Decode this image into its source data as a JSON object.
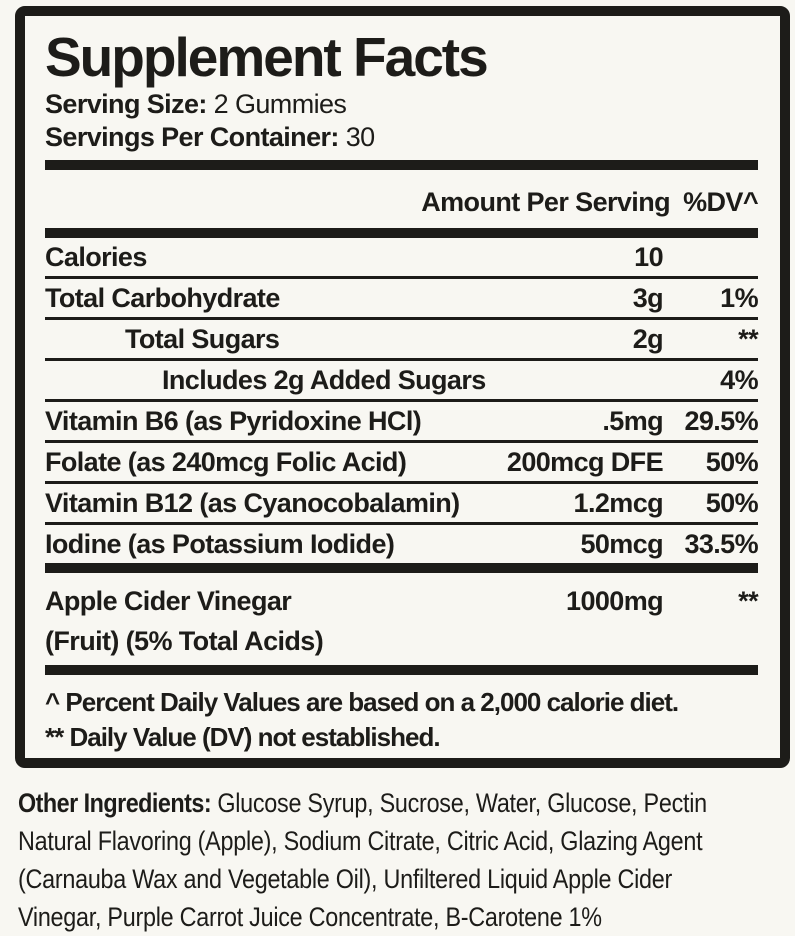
{
  "colors": {
    "ink": "#1d1c19",
    "background": "#f8f7f2"
  },
  "label": {
    "title": "Supplement Facts",
    "serving_size_label": "Serving Size:",
    "serving_size_value": "2 Gummies",
    "servings_per_container_label": "Servings Per Container:",
    "servings_per_container_value": "30",
    "header": {
      "amount": "Amount Per Serving",
      "dv": "%DV^"
    },
    "rows": [
      {
        "name": "Calories",
        "amount": "10",
        "dv": "",
        "indent": 0
      },
      {
        "name": "Total Carbohydrate",
        "amount": "3g",
        "dv": "1%",
        "indent": 0
      },
      {
        "name": "Total Sugars",
        "amount": "2g",
        "dv": "**",
        "indent": 1
      },
      {
        "name": "Includes 2g Added Sugars",
        "amount": "",
        "dv": "4%",
        "indent": 2
      },
      {
        "name": "Vitamin B6 (as Pyridoxine HCl)",
        "amount": ".5mg",
        "dv": "29.5%",
        "indent": 0
      },
      {
        "name": "Folate (as 240mcg Folic Acid)",
        "amount": "200mcg DFE",
        "dv": "50%",
        "indent": 0
      },
      {
        "name": "Vitamin B12 (as Cyanocobalamin)",
        "amount": "1.2mcg",
        "dv": "50%",
        "indent": 0
      },
      {
        "name": "Iodine (as Potassium Iodide)",
        "amount": "50mcg",
        "dv": "33.5%",
        "indent": 0
      }
    ],
    "highlight_row": {
      "name_line1": "Apple Cider Vinegar",
      "name_line2": "(Fruit) (5% Total Acids)",
      "amount": "1000mg",
      "dv": "**"
    },
    "footnotes": [
      "^ Percent Daily Values are based on a 2,000 calorie diet.",
      "** Daily Value (DV) not established."
    ]
  },
  "other_ingredients": {
    "label": "Other Ingredients:",
    "lines": [
      " Glucose Syrup, Sucrose, Water, Glucose, Pectin",
      "Natural Flavoring (Apple), Sodium Citrate, Citric Acid, Glazing Agent",
      "(Carnauba Wax and Vegetable Oil), Unfiltered Liquid Apple Cider",
      "Vinegar, Purple Carrot Juice Concentrate, B-Carotene 1%"
    ],
    "full_text": "Glucose Syrup, Sucrose, Water, Glucose, Pectin Natural Flavoring (Apple), Sodium Citrate, Citric Acid, Glazing Agent (Carnauba Wax and Vegetable Oil), Unfiltered Liquid Apple Cider Vinegar, Purple Carrot Juice Concentrate, B-Carotene 1%"
  }
}
